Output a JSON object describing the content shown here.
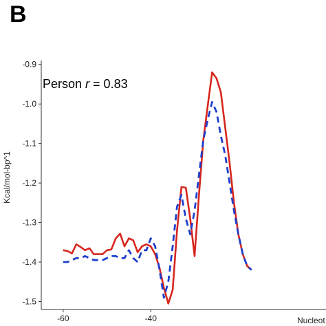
{
  "panel_label": "B",
  "chart_data": {
    "type": "line",
    "title": "",
    "xlabel": "Nucleot",
    "ylabel": "Kcal/mol-bp^1",
    "annotation": {
      "prefix": "Person ",
      "italic": "r",
      "suffix": " = 0.83"
    },
    "xlim": [
      -65,
      0
    ],
    "ylim": [
      -1.52,
      -0.89
    ],
    "x_ticks": [
      -60,
      -40
    ],
    "x_tick_labels": [
      "-60",
      "-40"
    ],
    "y_ticks": [
      -0.9,
      -1.0,
      -1.1,
      -1.2,
      -1.3,
      -1.4,
      -1.5
    ],
    "y_tick_labels": [
      "-0.9",
      "-1.0",
      "-1.1",
      "-1.2",
      "-1.3",
      "-1.4",
      "-1.5"
    ],
    "grid": false,
    "colors": {
      "red": "#d7261e",
      "blue": "#1f3fcc"
    },
    "series": [
      {
        "style": "solid",
        "color": "#d7261e",
        "x": [
          -60,
          -59,
          -58,
          -57,
          -56,
          -55,
          -54,
          -53,
          -52,
          -51,
          -50,
          -49,
          -48,
          -47,
          -46,
          -45,
          -44,
          -43,
          -42,
          -41,
          -40,
          -39,
          -38,
          -37,
          -36,
          -35,
          -34,
          -33,
          -32,
          -31,
          -30,
          -29,
          -28,
          -27,
          -26,
          -25,
          -24,
          -23,
          -22,
          -21,
          -20,
          -19,
          -18,
          -17
        ],
        "y": [
          -1.37,
          -1.372,
          -1.378,
          -1.355,
          -1.362,
          -1.37,
          -1.365,
          -1.38,
          -1.38,
          -1.38,
          -1.37,
          -1.368,
          -1.34,
          -1.328,
          -1.36,
          -1.34,
          -1.345,
          -1.375,
          -1.36,
          -1.355,
          -1.36,
          -1.38,
          -1.415,
          -1.465,
          -1.505,
          -1.47,
          -1.32,
          -1.21,
          -1.212,
          -1.29,
          -1.385,
          -1.23,
          -1.09,
          -1.005,
          -0.92,
          -0.935,
          -0.97,
          -1.06,
          -1.15,
          -1.25,
          -1.33,
          -1.38,
          -1.41,
          -1.42
        ]
      },
      {
        "style": "dashed",
        "color": "#1f3fcc",
        "x": [
          -60,
          -59,
          -58,
          -57,
          -56,
          -55,
          -54,
          -53,
          -52,
          -51,
          -50,
          -49,
          -48,
          -47,
          -46,
          -45,
          -44,
          -43,
          -42,
          -41,
          -40,
          -39,
          -38,
          -37,
          -36,
          -35,
          -34,
          -33,
          -32,
          -31,
          -30,
          -29,
          -28,
          -27,
          -26,
          -25,
          -24,
          -23,
          -22,
          -21,
          -20,
          -19,
          -18,
          -17
        ],
        "y": [
          -1.4,
          -1.4,
          -1.395,
          -1.39,
          -1.39,
          -1.385,
          -1.39,
          -1.395,
          -1.395,
          -1.395,
          -1.39,
          -1.385,
          -1.385,
          -1.39,
          -1.39,
          -1.37,
          -1.39,
          -1.4,
          -1.37,
          -1.37,
          -1.34,
          -1.36,
          -1.42,
          -1.49,
          -1.45,
          -1.36,
          -1.26,
          -1.23,
          -1.29,
          -1.33,
          -1.27,
          -1.18,
          -1.09,
          -1.04,
          -0.995,
          -1.02,
          -1.08,
          -1.13,
          -1.2,
          -1.27,
          -1.33,
          -1.38,
          -1.41,
          -1.42
        ]
      }
    ]
  }
}
